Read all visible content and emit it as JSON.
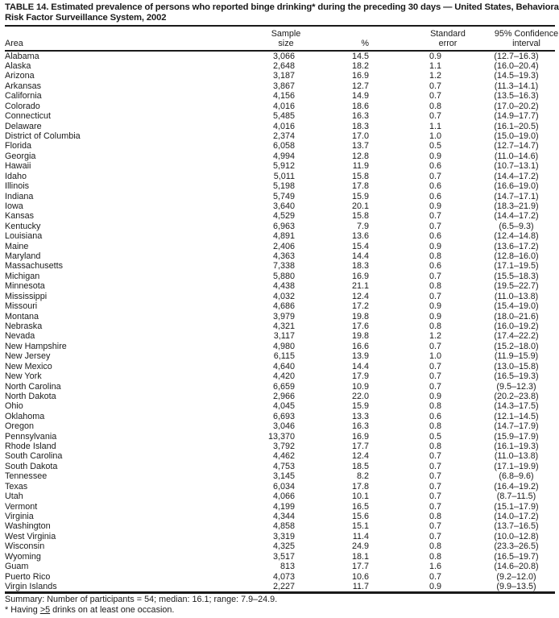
{
  "table": {
    "title_line1": "TABLE 14. Estimated prevalence of persons who reported binge drinking* during the preceding 30 days — United States, Behavioral",
    "title_line2": "Risk Factor Surveillance System, 2002",
    "columns": {
      "area": "Area",
      "sample_line1": "Sample",
      "sample_line2": "size",
      "pct": "%",
      "se_line1": "Standard",
      "se_line2": "error",
      "ci_line1": "95% Confidence",
      "ci_line2": "interval"
    },
    "rows": [
      {
        "area": "Alabama",
        "sample": "3,066",
        "pct": "14.5",
        "se": "0.9",
        "ci": "(12.7–16.3)"
      },
      {
        "area": "Alaska",
        "sample": "2,648",
        "pct": "18.2",
        "se": "1.1",
        "ci": "(16.0–20.4)"
      },
      {
        "area": "Arizona",
        "sample": "3,187",
        "pct": "16.9",
        "se": "1.2",
        "ci": "(14.5–19.3)"
      },
      {
        "area": "Arkansas",
        "sample": "3,867",
        "pct": "12.7",
        "se": "0.7",
        "ci": "(11.3–14.1)"
      },
      {
        "area": "California",
        "sample": "4,156",
        "pct": "14.9",
        "se": "0.7",
        "ci": "(13.5–16.3)"
      },
      {
        "area": "Colorado",
        "sample": "4,016",
        "pct": "18.6",
        "se": "0.8",
        "ci": "(17.0–20.2)"
      },
      {
        "area": "Connecticut",
        "sample": "5,485",
        "pct": "16.3",
        "se": "0.7",
        "ci": "(14.9–17.7)"
      },
      {
        "area": "Delaware",
        "sample": "4,016",
        "pct": "18.3",
        "se": "1.1",
        "ci": "(16.1–20.5)"
      },
      {
        "area": "District of Columbia",
        "sample": "2,374",
        "pct": "17.0",
        "se": "1.0",
        "ci": "(15.0–19.0)"
      },
      {
        "area": "Florida",
        "sample": "6,058",
        "pct": "13.7",
        "se": "0.5",
        "ci": "(12.7–14.7)"
      },
      {
        "area": "Georgia",
        "sample": "4,994",
        "pct": "12.8",
        "se": "0.9",
        "ci": "(11.0–14.6)"
      },
      {
        "area": "Hawaii",
        "sample": "5,912",
        "pct": "11.9",
        "se": "0.6",
        "ci": "(10.7–13.1)"
      },
      {
        "area": "Idaho",
        "sample": "5,011",
        "pct": "15.8",
        "se": "0.7",
        "ci": "(14.4–17.2)"
      },
      {
        "area": "Illinois",
        "sample": "5,198",
        "pct": "17.8",
        "se": "0.6",
        "ci": "(16.6–19.0)"
      },
      {
        "area": "Indiana",
        "sample": "5,749",
        "pct": "15.9",
        "se": "0.6",
        "ci": "(14.7–17.1)"
      },
      {
        "area": "Iowa",
        "sample": "3,640",
        "pct": "20.1",
        "se": "0.9",
        "ci": "(18.3–21.9)"
      },
      {
        "area": "Kansas",
        "sample": "4,529",
        "pct": "15.8",
        "se": "0.7",
        "ci": "(14.4–17.2)"
      },
      {
        "area": "Kentucky",
        "sample": "6,963",
        "pct": "7.9",
        "se": "0.7",
        "ci": "(6.5–9.3)"
      },
      {
        "area": "Louisiana",
        "sample": "4,891",
        "pct": "13.6",
        "se": "0.6",
        "ci": "(12.4–14.8)"
      },
      {
        "area": "Maine",
        "sample": "2,406",
        "pct": "15.4",
        "se": "0.9",
        "ci": "(13.6–17.2)"
      },
      {
        "area": "Maryland",
        "sample": "4,363",
        "pct": "14.4",
        "se": "0.8",
        "ci": "(12.8–16.0)"
      },
      {
        "area": "Massachusetts",
        "sample": "7,338",
        "pct": "18.3",
        "se": "0.6",
        "ci": "(17.1–19.5)"
      },
      {
        "area": "Michigan",
        "sample": "5,880",
        "pct": "16.9",
        "se": "0.7",
        "ci": "(15.5–18.3)"
      },
      {
        "area": "Minnesota",
        "sample": "4,438",
        "pct": "21.1",
        "se": "0.8",
        "ci": "(19.5–22.7)"
      },
      {
        "area": "Mississippi",
        "sample": "4,032",
        "pct": "12.4",
        "se": "0.7",
        "ci": "(11.0–13.8)"
      },
      {
        "area": "Missouri",
        "sample": "4,686",
        "pct": "17.2",
        "se": "0.9",
        "ci": "(15.4–19.0)"
      },
      {
        "area": "Montana",
        "sample": "3,979",
        "pct": "19.8",
        "se": "0.9",
        "ci": "(18.0–21.6)"
      },
      {
        "area": "Nebraska",
        "sample": "4,321",
        "pct": "17.6",
        "se": "0.8",
        "ci": "(16.0–19.2)"
      },
      {
        "area": "Nevada",
        "sample": "3,117",
        "pct": "19.8",
        "se": "1.2",
        "ci": "(17.4–22.2)"
      },
      {
        "area": "New Hampshire",
        "sample": "4,980",
        "pct": "16.6",
        "se": "0.7",
        "ci": "(15.2–18.0)"
      },
      {
        "area": "New Jersey",
        "sample": "6,115",
        "pct": "13.9",
        "se": "1.0",
        "ci": "(11.9–15.9)"
      },
      {
        "area": "New Mexico",
        "sample": "4,640",
        "pct": "14.4",
        "se": "0.7",
        "ci": "(13.0–15.8)"
      },
      {
        "area": "New York",
        "sample": "4,420",
        "pct": "17.9",
        "se": "0.7",
        "ci": "(16.5–19.3)"
      },
      {
        "area": "North Carolina",
        "sample": "6,659",
        "pct": "10.9",
        "se": "0.7",
        "ci": "(9.5–12.3)"
      },
      {
        "area": "North Dakota",
        "sample": "2,966",
        "pct": "22.0",
        "se": "0.9",
        "ci": "(20.2–23.8)"
      },
      {
        "area": "Ohio",
        "sample": "4,045",
        "pct": "15.9",
        "se": "0.8",
        "ci": "(14.3–17.5)"
      },
      {
        "area": "Oklahoma",
        "sample": "6,693",
        "pct": "13.3",
        "se": "0.6",
        "ci": "(12.1–14.5)"
      },
      {
        "area": "Oregon",
        "sample": "3,046",
        "pct": "16.3",
        "se": "0.8",
        "ci": "(14.7–17.9)"
      },
      {
        "area": "Pennsylvania",
        "sample": "13,370",
        "pct": "16.9",
        "se": "0.5",
        "ci": "(15.9–17.9)"
      },
      {
        "area": "Rhode Island",
        "sample": "3,792",
        "pct": "17.7",
        "se": "0.8",
        "ci": "(16.1–19.3)"
      },
      {
        "area": "South Carolina",
        "sample": "4,462",
        "pct": "12.4",
        "se": "0.7",
        "ci": "(11.0–13.8)"
      },
      {
        "area": "South Dakota",
        "sample": "4,753",
        "pct": "18.5",
        "se": "0.7",
        "ci": "(17.1–19.9)"
      },
      {
        "area": "Tennessee",
        "sample": "3,145",
        "pct": "8.2",
        "se": "0.7",
        "ci": "(6.8–9.6)"
      },
      {
        "area": "Texas",
        "sample": "6,034",
        "pct": "17.8",
        "se": "0.7",
        "ci": "(16.4–19.2)"
      },
      {
        "area": "Utah",
        "sample": "4,066",
        "pct": "10.1",
        "se": "0.7",
        "ci": "(8.7–11.5)"
      },
      {
        "area": "Vermont",
        "sample": "4,199",
        "pct": "16.5",
        "se": "0.7",
        "ci": "(15.1–17.9)"
      },
      {
        "area": "Virginia",
        "sample": "4,344",
        "pct": "15.6",
        "se": "0.8",
        "ci": "(14.0–17.2)"
      },
      {
        "area": "Washington",
        "sample": "4,858",
        "pct": "15.1",
        "se": "0.7",
        "ci": "(13.7–16.5)"
      },
      {
        "area": "West Virginia",
        "sample": "3,319",
        "pct": "11.4",
        "se": "0.7",
        "ci": "(10.0–12.8)"
      },
      {
        "area": "Wisconsin",
        "sample": "4,325",
        "pct": "24.9",
        "se": "0.8",
        "ci": "(23.3–26.5)"
      },
      {
        "area": "Wyoming",
        "sample": "3,517",
        "pct": "18.1",
        "se": "0.8",
        "ci": "(16.5–19.7)"
      },
      {
        "area": "Guam",
        "sample": "813",
        "pct": "17.7",
        "se": "1.6",
        "ci": "(14.6–20.8)"
      },
      {
        "area": "Puerto Rico",
        "sample": "4,073",
        "pct": "10.6",
        "se": "0.7",
        "ci": "(9.2–12.0)"
      },
      {
        "area": "Virgin Islands",
        "sample": "2,227",
        "pct": "11.7",
        "se": "0.9",
        "ci": "(9.9–13.5)"
      }
    ],
    "summary": "Summary: Number of participants = 54; median: 16.1; range: 7.9–24.9.",
    "footnote_prefix": "* Having ",
    "footnote_geq": ">5",
    "footnote_suffix": " drinks on at least one occasion."
  }
}
